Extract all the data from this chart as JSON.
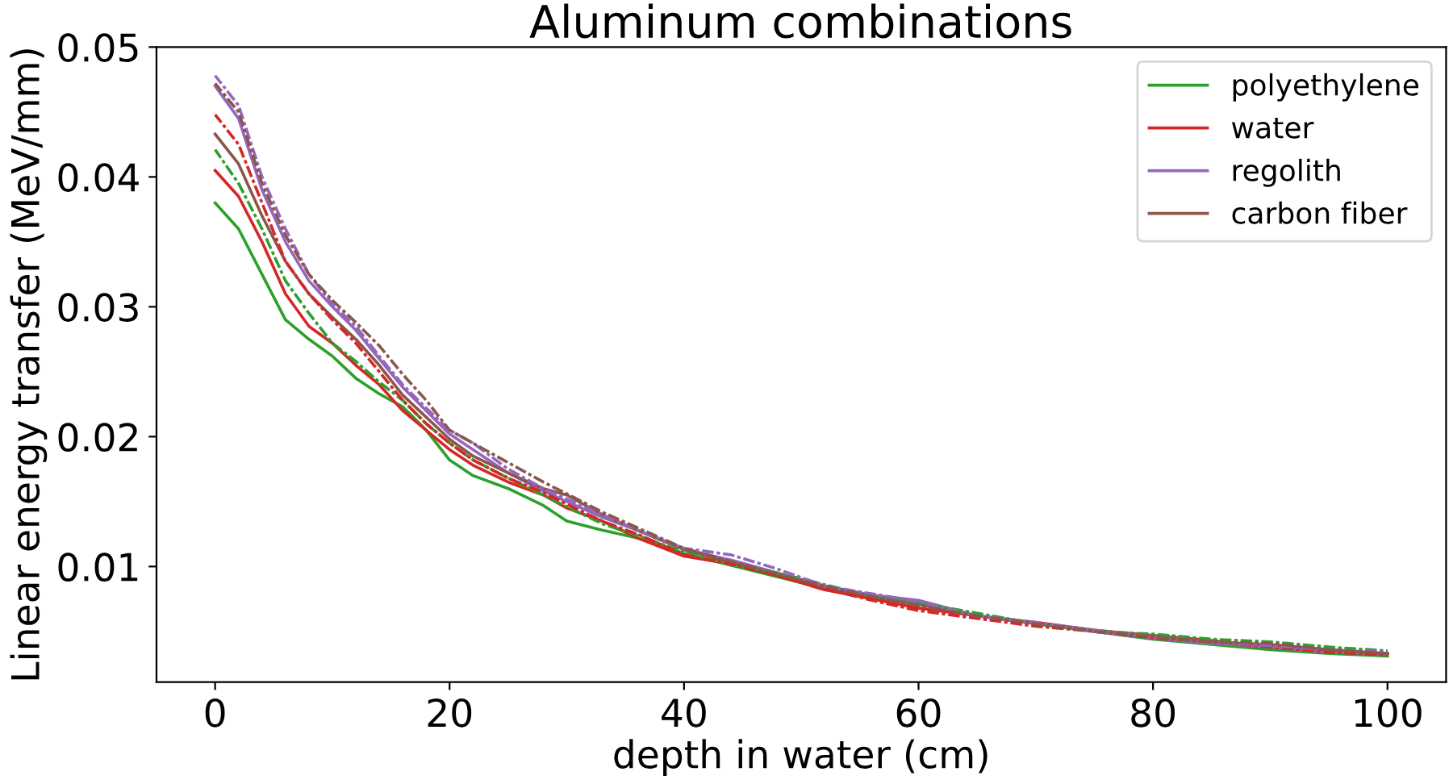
{
  "chart_data": {
    "type": "line",
    "title": "Aluminum combinations",
    "xlabel": "depth in water (cm)",
    "ylabel": "Linear energy transfer (MeV/mm)",
    "x": [
      0,
      2,
      4,
      6,
      8,
      10,
      12,
      14,
      16,
      18,
      20,
      22,
      25,
      28,
      30,
      33,
      36,
      40,
      44,
      48,
      52,
      56,
      60,
      65,
      70,
      75,
      80,
      85,
      90,
      95,
      100
    ],
    "series": [
      {
        "name": "polyethylene",
        "color": "#2ca02c",
        "line_style": "solid",
        "values": [
          0.038,
          0.036,
          0.0325,
          0.029,
          0.0275,
          0.0262,
          0.0245,
          0.0233,
          0.0223,
          0.0205,
          0.0182,
          0.017,
          0.016,
          0.0147,
          0.0135,
          0.0128,
          0.0122,
          0.011,
          0.0101,
          0.0092,
          0.0083,
          0.0076,
          0.0071,
          0.0062,
          0.0056,
          0.005,
          0.0044,
          0.004,
          0.0036,
          0.0033,
          0.0031
        ]
      },
      {
        "name": "water",
        "color": "#d62728",
        "line_style": "solid",
        "values": [
          0.0405,
          0.0385,
          0.035,
          0.031,
          0.0285,
          0.0272,
          0.0255,
          0.024,
          0.022,
          0.0205,
          0.019,
          0.0178,
          0.0165,
          0.0155,
          0.0145,
          0.0135,
          0.0122,
          0.0108,
          0.0102,
          0.0093,
          0.0082,
          0.0075,
          0.0068,
          0.0062,
          0.0057,
          0.0051,
          0.0047,
          0.0043,
          0.0038,
          0.0035,
          0.0033
        ]
      },
      {
        "name": "regolith",
        "color": "#9467bd",
        "line_style": "solid",
        "values": [
          0.047,
          0.0445,
          0.039,
          0.035,
          0.032,
          0.03,
          0.0282,
          0.026,
          0.0238,
          0.022,
          0.0202,
          0.019,
          0.0172,
          0.0158,
          0.015,
          0.0138,
          0.0128,
          0.0113,
          0.0105,
          0.0095,
          0.0085,
          0.0078,
          0.0074,
          0.0062,
          0.0056,
          0.005,
          0.0045,
          0.0041,
          0.0038,
          0.0034,
          0.0033
        ]
      },
      {
        "name": "carbon fiber",
        "color": "#8c564b",
        "line_style": "solid",
        "values": [
          0.0433,
          0.041,
          0.037,
          0.0335,
          0.031,
          0.0292,
          0.0275,
          0.0255,
          0.0232,
          0.0215,
          0.0198,
          0.0185,
          0.0172,
          0.016,
          0.0155,
          0.014,
          0.0128,
          0.0113,
          0.0103,
          0.0094,
          0.0084,
          0.0077,
          0.0071,
          0.0062,
          0.0056,
          0.0051,
          0.0046,
          0.0042,
          0.004,
          0.0036,
          0.0033
        ]
      },
      {
        "color": "#2ca02c",
        "line_style": "dashdot",
        "values": [
          0.0421,
          0.0395,
          0.036,
          0.032,
          0.0295,
          0.0272,
          0.0258,
          0.0242,
          0.0228,
          0.021,
          0.0195,
          0.0182,
          0.0168,
          0.0155,
          0.0146,
          0.0133,
          0.0124,
          0.0111,
          0.0101,
          0.0095,
          0.0086,
          0.0077,
          0.0072,
          0.0064,
          0.0056,
          0.005,
          0.0048,
          0.0044,
          0.0042,
          0.0038,
          0.0035
        ]
      },
      {
        "color": "#d62728",
        "line_style": "dashdot",
        "values": [
          0.0448,
          0.0425,
          0.038,
          0.0335,
          0.031,
          0.029,
          0.0272,
          0.025,
          0.0228,
          0.021,
          0.0195,
          0.0182,
          0.0168,
          0.0157,
          0.0148,
          0.0135,
          0.0125,
          0.0109,
          0.0102,
          0.0093,
          0.0083,
          0.0074,
          0.0066,
          0.006,
          0.0054,
          0.005,
          0.0045,
          0.0042,
          0.0038,
          0.0034,
          0.0032
        ]
      },
      {
        "color": "#9467bd",
        "line_style": "dashdot",
        "values": [
          0.0478,
          0.0455,
          0.04,
          0.036,
          0.0325,
          0.0302,
          0.0285,
          0.0262,
          0.024,
          0.0222,
          0.0205,
          0.0195,
          0.0175,
          0.016,
          0.0152,
          0.014,
          0.0128,
          0.0114,
          0.0109,
          0.0098,
          0.0085,
          0.0079,
          0.0073,
          0.0062,
          0.0057,
          0.0051,
          0.0046,
          0.0042,
          0.0039,
          0.0036,
          0.0034
        ]
      },
      {
        "color": "#8c564b",
        "line_style": "dashdot",
        "values": [
          0.0472,
          0.045,
          0.0395,
          0.0355,
          0.0325,
          0.0305,
          0.0288,
          0.027,
          0.0248,
          0.0228,
          0.0205,
          0.0195,
          0.018,
          0.0165,
          0.0156,
          0.0142,
          0.013,
          0.0114,
          0.0104,
          0.0094,
          0.0085,
          0.0077,
          0.007,
          0.0062,
          0.0056,
          0.005,
          0.0046,
          0.0042,
          0.0041,
          0.0036,
          0.0033
        ]
      }
    ],
    "xlim": [
      -5,
      105
    ],
    "ylim": [
      0.0011,
      0.05
    ],
    "xticks": [
      0,
      20,
      40,
      60,
      80,
      100
    ],
    "yticks": [
      0.01,
      0.02,
      0.03,
      0.04,
      0.05
    ],
    "grid": false,
    "legend": "top right"
  }
}
